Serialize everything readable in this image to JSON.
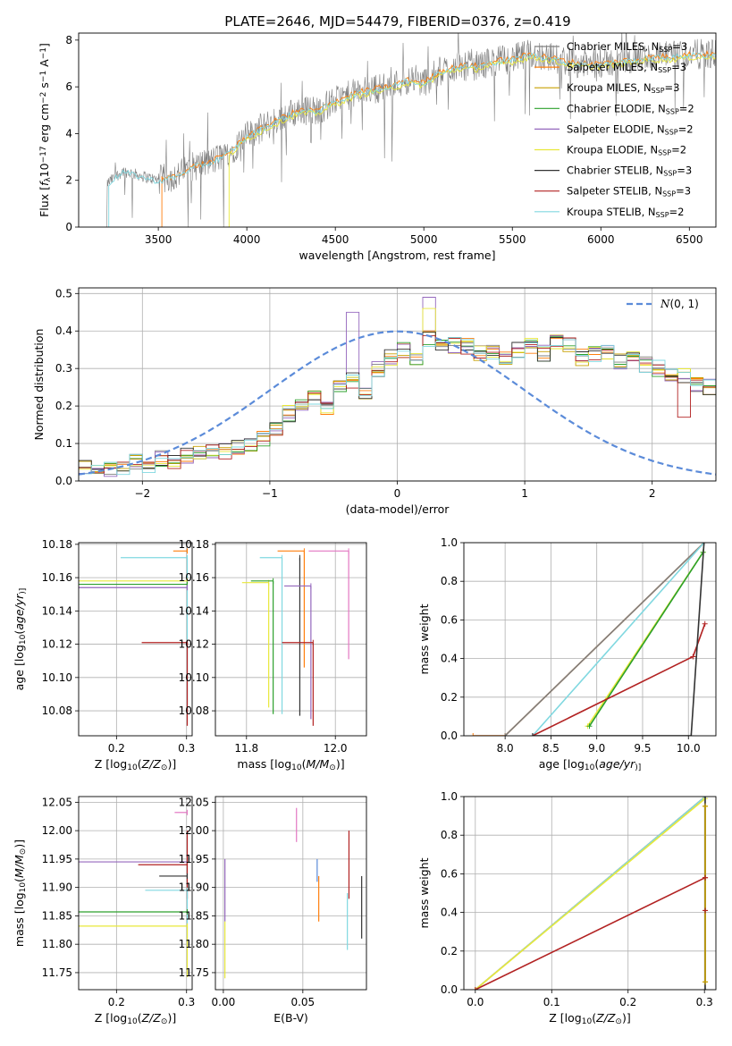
{
  "figure": {
    "title": "PLATE=2646, MJD=54479, FIBERID=0376, z=0.419",
    "colors": {
      "Chabrier MILES": "#7f7f7f",
      "Salpeter MILES": "#ff7f0e",
      "Kroupa MILES": "#c7a000",
      "Chabrier ELODIE": "#2ca02c",
      "Salpeter ELODIE": "#9467bd",
      "Kroupa ELODIE": "#e8e83a",
      "Chabrier STELIB": "#333333",
      "Salpeter STELIB": "#b22222",
      "Kroupa STELIB": "#80d8e0",
      "gaussian": "#5b8bd9",
      "pink": "#e377c2",
      "lightgreen": "#b5e35a"
    }
  },
  "chart_data": [
    {
      "id": "spectrum",
      "type": "line",
      "xlabel": "wavelength [Angstrom, rest frame]",
      "ylabel_parts": [
        "Flux [",
        "f",
        "λ",
        "10",
        "−17",
        " erg cm",
        "−2",
        " s",
        "−1",
        " A",
        "−1",
        "]"
      ],
      "xlim": [
        3050,
        6650
      ],
      "ylim": [
        0,
        8.3
      ],
      "xticks": [
        3500,
        4000,
        4500,
        5000,
        5500,
        6000,
        6500
      ],
      "yticks": [
        0,
        2,
        4,
        6,
        8
      ],
      "legend": [
        {
          "label": "Chabrier MILES, N",
          "sub": "SSP",
          "tail": "=3",
          "color": "Chabrier MILES"
        },
        {
          "label": "Salpeter MILES, N",
          "sub": "SSP",
          "tail": "=3",
          "color": "Salpeter MILES"
        },
        {
          "label": "Kroupa MILES, N",
          "sub": "SSP",
          "tail": "=3",
          "color": "Kroupa MILES"
        },
        {
          "label": "Chabrier ELODIE, N",
          "sub": "SSP",
          "tail": "=2",
          "color": "Chabrier ELODIE"
        },
        {
          "label": "Salpeter ELODIE, N",
          "sub": "SSP",
          "tail": "=2",
          "color": "Salpeter ELODIE"
        },
        {
          "label": "Kroupa ELODIE, N",
          "sub": "SSP",
          "tail": "=2",
          "color": "Kroupa ELODIE"
        },
        {
          "label": "Chabrier STELIB, N",
          "sub": "SSP",
          "tail": "=3",
          "color": "Chabrier STELIB"
        },
        {
          "label": "Salpeter STELIB, N",
          "sub": "SSP",
          "tail": "=3",
          "color": "Salpeter STELIB"
        },
        {
          "label": "Kroupa STELIB, N",
          "sub": "SSP",
          "tail": "=2",
          "color": "Kroupa STELIB"
        }
      ],
      "legend_position": "upper right",
      "continuum_x": [
        3200,
        3300,
        3400,
        3500,
        3600,
        3700,
        3800,
        3900,
        4000,
        4100,
        4200,
        4300,
        4400,
        4500,
        4600,
        4700,
        4800,
        4900,
        5000,
        5100,
        5200,
        5300,
        5400,
        5500,
        5600,
        5700,
        5800,
        5900,
        6000,
        6100,
        6200,
        6300,
        6400,
        6500,
        6600
      ],
      "continuum_y": [
        1.8,
        2.4,
        2.2,
        2.0,
        2.2,
        2.6,
        2.8,
        3.2,
        3.9,
        4.3,
        4.7,
        5.0,
        5.0,
        5.4,
        5.7,
        5.9,
        6.0,
        6.3,
        6.2,
        6.7,
        6.9,
        6.9,
        7.1,
        7.2,
        7.4,
        7.3,
        7.1,
        7.0,
        7.0,
        7.1,
        7.2,
        7.3,
        7.3,
        7.4,
        7.4
      ],
      "data_range": [
        3200,
        6650
      ],
      "model_starts": {
        "MILES": 3520,
        "ELODIE": 3900,
        "STELIB": 3220
      }
    },
    {
      "id": "residuals",
      "type": "histogram",
      "xlabel": "(data-model)/error",
      "ylabel": "Normed distribution",
      "xlim": [
        -2.5,
        2.5
      ],
      "ylim": [
        0,
        0.515
      ],
      "xticks": [
        -2,
        -1,
        0,
        1,
        2
      ],
      "xtick_labels": [
        "−2",
        "−1",
        "0",
        "1",
        "2"
      ],
      "yticks": [
        0.0,
        0.1,
        0.2,
        0.3,
        0.4,
        0.5
      ],
      "ytick_labels": [
        "0.0",
        "0.1",
        "0.2",
        "0.3",
        "0.4",
        "0.5"
      ],
      "bin_width": 0.1,
      "reference_curve": {
        "label": "N(0,1)",
        "type": "gaussian",
        "mean": 0,
        "sigma": 1
      },
      "base_shape": [
        0.04,
        0.04,
        0.03,
        0.03,
        0.05,
        0.04,
        0.06,
        0.05,
        0.07,
        0.08,
        0.08,
        0.08,
        0.09,
        0.1,
        0.11,
        0.14,
        0.18,
        0.2,
        0.22,
        0.2,
        0.25,
        0.27,
        0.24,
        0.3,
        0.33,
        0.35,
        0.33,
        0.38,
        0.37,
        0.36,
        0.36,
        0.34,
        0.34,
        0.33,
        0.35,
        0.36,
        0.34,
        0.37,
        0.36,
        0.33,
        0.34,
        0.34,
        0.32,
        0.33,
        0.31,
        0.3,
        0.28,
        0.28,
        0.26,
        0.25,
        0.25,
        0.25,
        0.22,
        0.21,
        0.22,
        0.2,
        0.18,
        0.18,
        0.15,
        0.15,
        0.12,
        0.12,
        0.1,
        0.11,
        0.1,
        0.08
      ],
      "highlights": [
        {
          "series": "Salpeter ELODIE",
          "x": -0.35,
          "y": 0.45
        },
        {
          "series": "Salpeter ELODIE",
          "x": 0.25,
          "y": 0.49
        },
        {
          "series": "Kroupa ELODIE",
          "x": 0.25,
          "y": 0.46
        },
        {
          "series": "Salpeter STELIB",
          "x": 2.25,
          "y": 0.17
        }
      ]
    },
    {
      "id": "age-vs-Z",
      "type": "errorbar",
      "xlabel_parts": [
        "Z [log",
        "10",
        "(",
        "Z/Z",
        "⊙",
        ")]"
      ],
      "ylabel_parts": [
        "age  [log",
        "10",
        "(",
        "age/yr",
        ")]"
      ],
      "xlim": [
        0.146,
        0.308
      ],
      "ylim": [
        10.065,
        10.181
      ],
      "xticks": [
        0.2,
        0.3
      ],
      "xtick_labels": [
        "0.2",
        "0.3"
      ],
      "yticks": [
        10.08,
        10.1,
        10.12,
        10.14,
        10.16,
        10.18
      ],
      "ytick_labels": [
        "10.08",
        "10.10",
        "10.12",
        "10.14",
        "10.16",
        "10.18"
      ],
      "points": [
        {
          "series": "Salpeter MILES",
          "x": 0.301,
          "y": 10.176,
          "xerr": [
            0.02,
            0.0
          ]
        },
        {
          "series": "Kroupa STELIB",
          "x": 0.301,
          "y": 10.172,
          "xerr": [
            0.095,
            0.0
          ],
          "yerr": [
            0.094,
            0.0
          ]
        },
        {
          "series": "Kroupa ELODIE",
          "x": 0.301,
          "y": 10.158,
          "xerr": [
            0.16,
            0.0
          ]
        },
        {
          "series": "Chabrier ELODIE",
          "x": 0.301,
          "y": 10.156,
          "xerr": [
            0.16,
            0.0
          ]
        },
        {
          "series": "Salpeter ELODIE",
          "x": 0.301,
          "y": 10.154,
          "xerr": [
            0.16,
            0.0
          ]
        },
        {
          "series": "Salpeter STELIB",
          "x": 0.301,
          "y": 10.121,
          "xerr": [
            0.065,
            0.0
          ],
          "yerr": [
            0.05,
            0.0
          ]
        }
      ]
    },
    {
      "id": "age-vs-mass",
      "type": "errorbar",
      "xlabel_parts": [
        "mass [log",
        "10",
        "(",
        "M/M",
        "⊙",
        ")]"
      ],
      "ylabel": "",
      "xlim": [
        11.73,
        12.07
      ],
      "ylim": [
        10.065,
        10.181
      ],
      "xticks": [
        11.8,
        12.0
      ],
      "xtick_labels": [
        "11.8",
        "12.0"
      ],
      "yticks": [
        10.08,
        10.1,
        10.12,
        10.14,
        10.16,
        10.18
      ],
      "ytick_labels": [
        "10.08",
        "10.10",
        "10.12",
        "10.14",
        "10.16",
        "10.18"
      ],
      "points": [
        {
          "series": "pink",
          "x": 12.03,
          "y": 10.176,
          "xerr": [
            0.09,
            0.0
          ],
          "yerr": [
            0.065,
            0.0
          ]
        },
        {
          "series": "Salpeter MILES",
          "x": 11.93,
          "y": 10.176,
          "xerr": [
            0.06,
            0.0
          ],
          "yerr": [
            0.07,
            0.0
          ]
        },
        {
          "series": "Chabrier STELIB",
          "x": 11.92,
          "y": 10.172,
          "xerr": [
            0.0,
            0.0
          ],
          "yerr": [
            0.095,
            0.0
          ]
        },
        {
          "series": "Kroupa STELIB",
          "x": 11.88,
          "y": 10.172,
          "xerr": [
            0.05,
            0.0
          ],
          "yerr": [
            0.094,
            0.0
          ]
        },
        {
          "series": "Kroupa ELODIE",
          "x": 11.85,
          "y": 10.157,
          "xerr": [
            0.06,
            0.0
          ],
          "yerr": [
            0.075,
            0.0
          ]
        },
        {
          "series": "Chabrier ELODIE",
          "x": 11.86,
          "y": 10.158,
          "xerr": [
            0.05,
            0.0
          ],
          "yerr": [
            0.08,
            0.0
          ]
        },
        {
          "series": "Salpeter ELODIE",
          "x": 11.945,
          "y": 10.155,
          "xerr": [
            0.06,
            0.0
          ],
          "yerr": [
            0.08,
            0.0
          ]
        },
        {
          "series": "Salpeter STELIB",
          "x": 11.95,
          "y": 10.121,
          "xerr": [
            0.07,
            0.0
          ],
          "yerr": [
            0.05,
            0.0
          ]
        }
      ]
    },
    {
      "id": "weight-vs-age",
      "type": "line",
      "xlabel_parts": [
        "age  [log",
        "10",
        "(",
        "age/yr",
        ")]"
      ],
      "ylabel": "mass weight",
      "xlim": [
        7.55,
        10.3
      ],
      "ylim": [
        0,
        1.0
      ],
      "xticks": [
        8.0,
        8.5,
        9.0,
        9.5,
        10.0
      ],
      "xtick_labels": [
        "8.0",
        "8.5",
        "9.0",
        "9.5",
        "10.0"
      ],
      "yticks": [
        0.0,
        0.2,
        0.4,
        0.6,
        0.8,
        1.0
      ],
      "ytick_labels": [
        "0.0",
        "0.2",
        "0.4",
        "0.6",
        "0.8",
        "1.0"
      ],
      "series": [
        {
          "series": "Salpeter MILES",
          "x": [
            7.65,
            8.0,
            10.17
          ],
          "y": [
            0.0,
            0.0,
            1.0
          ]
        },
        {
          "series": "Chabrier MILES",
          "x": [
            8.0,
            10.17
          ],
          "y": [
            0.0,
            1.0
          ]
        },
        {
          "series": "Kroupa STELIB",
          "x": [
            8.3,
            10.17
          ],
          "y": [
            0.0,
            1.0
          ]
        },
        {
          "series": "Kroupa ELODIE",
          "x": [
            8.9,
            10.16
          ],
          "y": [
            0.05,
            0.95
          ]
        },
        {
          "series": "Chabrier ELODIE",
          "x": [
            8.92,
            10.16
          ],
          "y": [
            0.05,
            0.95
          ]
        },
        {
          "series": "Salpeter STELIB",
          "x": [
            8.3,
            10.05,
            10.18
          ],
          "y": [
            0.0,
            0.41,
            0.58
          ]
        },
        {
          "series": "Chabrier STELIB",
          "x": [
            8.3,
            10.03,
            10.17
          ],
          "y": [
            0.0,
            0.0,
            1.0
          ]
        }
      ]
    },
    {
      "id": "mass-vs-Z",
      "type": "errorbar",
      "xlabel_parts": [
        "Z [log",
        "10",
        "(",
        "Z/Z",
        "⊙",
        ")]"
      ],
      "ylabel_parts": [
        "mass [log",
        "10",
        "(",
        "M/M",
        "⊙",
        ")]"
      ],
      "xlim": [
        0.146,
        0.308
      ],
      "ylim": [
        11.72,
        12.06
      ],
      "xticks": [
        0.2,
        0.3
      ],
      "xtick_labels": [
        "0.2",
        "0.3"
      ],
      "yticks": [
        11.75,
        11.8,
        11.85,
        11.9,
        11.95,
        12.0,
        12.05
      ],
      "ytick_labels": [
        "11.75",
        "11.80",
        "11.85",
        "11.90",
        "11.95",
        "12.00",
        "12.05"
      ],
      "points": [
        {
          "series": "pink",
          "x": 0.301,
          "y": 12.032,
          "xerr": [
            0.018,
            0.0
          ]
        },
        {
          "series": "Salpeter ELODIE",
          "x": 0.301,
          "y": 11.945,
          "xerr": [
            0.155,
            0.0
          ]
        },
        {
          "series": "Salpeter STELIB",
          "x": 0.301,
          "y": 11.94,
          "xerr": [
            0.07,
            0.0
          ],
          "yerr": [
            0.06,
            0.06
          ]
        },
        {
          "series": "Chabrier STELIB",
          "x": 0.301,
          "y": 11.92,
          "xerr": [
            0.04,
            0.0
          ]
        },
        {
          "series": "Kroupa STELIB",
          "x": 0.301,
          "y": 11.895,
          "xerr": [
            0.06,
            0.0
          ],
          "yerr": [
            0.09,
            0.0
          ]
        },
        {
          "series": "Chabrier ELODIE",
          "x": 0.301,
          "y": 11.857,
          "xerr": [
            0.155,
            0.0
          ]
        },
        {
          "series": "Kroupa ELODIE",
          "x": 0.301,
          "y": 11.832,
          "xerr": [
            0.155,
            0.0
          ],
          "yerr": [
            0.09,
            0.0
          ]
        }
      ]
    },
    {
      "id": "mass-vs-ebv",
      "type": "errorbar",
      "xlabel": "E(B-V)",
      "ylabel": "",
      "xlim": [
        -0.005,
        0.09
      ],
      "ylim": [
        11.72,
        12.06
      ],
      "xticks": [
        0.0,
        0.05
      ],
      "xtick_labels": [
        "0.00",
        "0.05"
      ],
      "yticks": [
        11.75,
        11.8,
        11.85,
        11.9,
        11.95,
        12.0,
        12.05
      ],
      "ytick_labels": [
        "11.75",
        "11.80",
        "11.85",
        "11.90",
        "11.95",
        "12.00",
        "12.05"
      ],
      "segments": [
        {
          "series": "Salpeter ELODIE",
          "x": 0.001,
          "y": [
            11.84,
            11.95
          ]
        },
        {
          "series": "Kroupa ELODIE",
          "x": 0.001,
          "y": [
            11.74,
            11.84
          ]
        },
        {
          "series": "pink",
          "x": 0.046,
          "y": [
            11.98,
            12.04
          ]
        },
        {
          "series": "gaussian",
          "x": 0.059,
          "y": [
            11.91,
            11.95
          ]
        },
        {
          "series": "Salpeter MILES",
          "x": 0.06,
          "y": [
            11.84,
            11.92
          ]
        },
        {
          "series": "Kroupa STELIB",
          "x": 0.078,
          "y": [
            11.79,
            11.89
          ]
        },
        {
          "series": "Salpeter STELIB",
          "x": 0.079,
          "y": [
            11.88,
            12.0
          ]
        },
        {
          "series": "Chabrier STELIB",
          "x": 0.087,
          "y": [
            11.81,
            11.92
          ]
        }
      ]
    },
    {
      "id": "weight-vs-Z",
      "type": "line",
      "xlabel_parts": [
        "Z [log",
        "10",
        "(",
        "Z/Z",
        "⊙",
        ")]"
      ],
      "ylabel": "mass weight",
      "xlim": [
        -0.015,
        0.315
      ],
      "ylim": [
        0,
        1.0
      ],
      "xticks": [
        0.0,
        0.1,
        0.2,
        0.3
      ],
      "xtick_labels": [
        "0.0",
        "0.1",
        "0.2",
        "0.3"
      ],
      "yticks": [
        0.0,
        0.2,
        0.4,
        0.6,
        0.8,
        1.0
      ],
      "ytick_labels": [
        "0.0",
        "0.2",
        "0.4",
        "0.6",
        "0.8",
        "1.0"
      ],
      "series": [
        {
          "series": "Chabrier MILES",
          "x": [
            0.0,
            0.301
          ],
          "y": [
            0.0,
            1.0
          ]
        },
        {
          "series": "Salpeter MILES",
          "x": [
            0.0,
            0.301
          ],
          "y": [
            0.0,
            1.0
          ]
        },
        {
          "series": "Kroupa STELIB",
          "x": [
            0.0,
            0.301
          ],
          "y": [
            0.0,
            1.0
          ]
        },
        {
          "series": "Kroupa ELODIE",
          "x": [
            0.0,
            0.301
          ],
          "y": [
            0.0,
            0.99
          ]
        },
        {
          "series": "Salpeter STELIB",
          "x": [
            0.0,
            0.301
          ],
          "y": [
            0.0,
            0.58
          ]
        },
        {
          "series": "Chabrier STELIB",
          "x": [
            0.301,
            0.301
          ],
          "y": [
            0.0,
            1.0
          ]
        },
        {
          "series": "Kroupa MILES",
          "x": [
            0.301,
            0.301
          ],
          "y": [
            0.04,
            0.95
          ]
        }
      ],
      "markers": [
        {
          "series": "Salpeter STELIB",
          "x": 0.301,
          "y": 0.41
        },
        {
          "series": "Salpeter STELIB",
          "x": 0.301,
          "y": 0.58
        },
        {
          "series": "Kroupa MILES",
          "x": 0.301,
          "y": 0.95
        },
        {
          "series": "Kroupa MILES",
          "x": 0.301,
          "y": 0.04
        }
      ]
    }
  ]
}
